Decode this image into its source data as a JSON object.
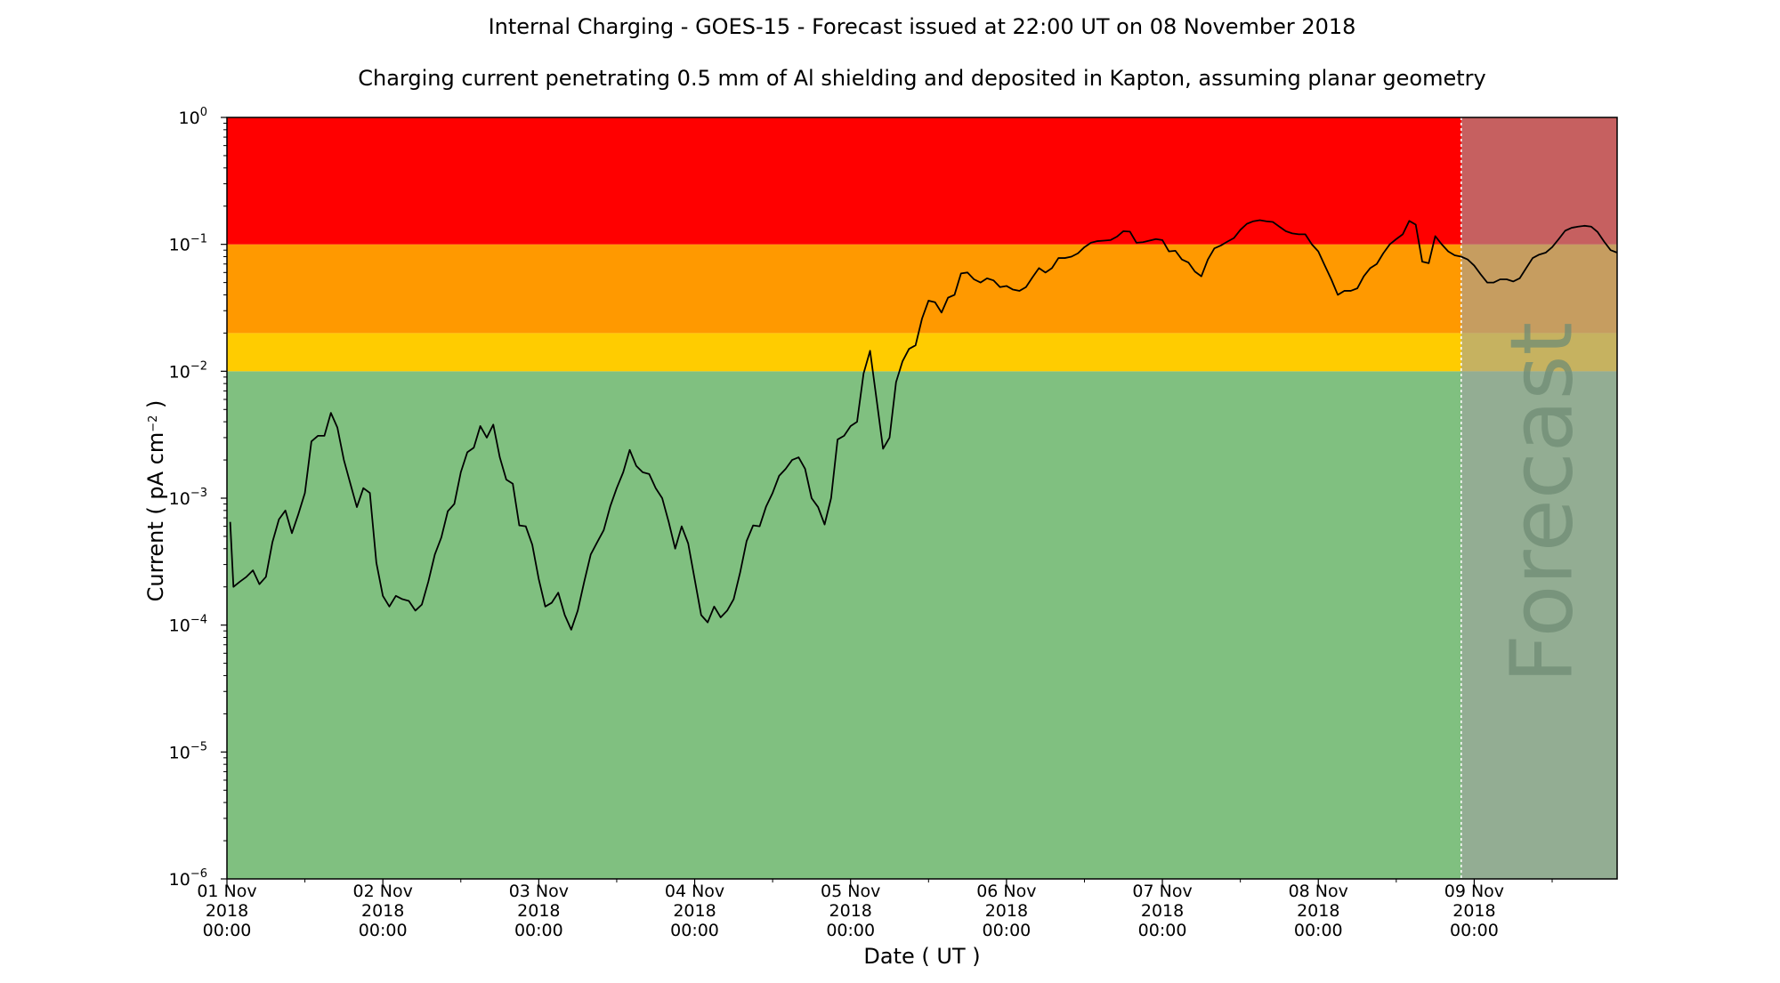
{
  "chart_data": {
    "type": "line",
    "title": "Internal Charging - GOES-15 - Forecast issued at 22:00 UT on 08 November 2018",
    "subtitle": "Charging current penetrating 0.5 mm of Al shielding and deposited in Kapton, assuming planar geometry",
    "xlabel": "Date ( UT )",
    "ylabel_prefix": "Current ( pA cm",
    "ylabel_exp": "−2",
    "ylabel_suffix": " )",
    "yscale": "log",
    "ylim": [
      1e-06,
      1
    ],
    "xlim": [
      "2018-11-01T00:00",
      "2018-11-09T22:00"
    ],
    "grid": false,
    "y_ticks": [
      {
        "value": 1e-06,
        "base": "10",
        "exp": "−6"
      },
      {
        "value": 1e-05,
        "base": "10",
        "exp": "−5"
      },
      {
        "value": 0.0001,
        "base": "10",
        "exp": "−4"
      },
      {
        "value": 0.001,
        "base": "10",
        "exp": "−3"
      },
      {
        "value": 0.01,
        "base": "10",
        "exp": "−2"
      },
      {
        "value": 0.1,
        "base": "10",
        "exp": "−1"
      },
      {
        "value": 1,
        "base": "10",
        "exp": "0"
      }
    ],
    "x_ticks": [
      {
        "value": "2018-11-01T00:00",
        "lines": [
          "01 Nov",
          "2018",
          "00:00"
        ]
      },
      {
        "value": "2018-11-02T00:00",
        "lines": [
          "02 Nov",
          "2018",
          "00:00"
        ]
      },
      {
        "value": "2018-11-03T00:00",
        "lines": [
          "03 Nov",
          "2018",
          "00:00"
        ]
      },
      {
        "value": "2018-11-04T00:00",
        "lines": [
          "04 Nov",
          "2018",
          "00:00"
        ]
      },
      {
        "value": "2018-11-05T00:00",
        "lines": [
          "05 Nov",
          "2018",
          "00:00"
        ]
      },
      {
        "value": "2018-11-06T00:00",
        "lines": [
          "06 Nov",
          "2018",
          "00:00"
        ]
      },
      {
        "value": "2018-11-07T00:00",
        "lines": [
          "07 Nov",
          "2018",
          "00:00"
        ]
      },
      {
        "value": "2018-11-08T00:00",
        "lines": [
          "08 Nov",
          "2018",
          "00:00"
        ]
      },
      {
        "value": "2018-11-09T00:00",
        "lines": [
          "09 Nov",
          "2018",
          "00:00"
        ]
      }
    ],
    "bands": [
      {
        "from": 1e-06,
        "to": 0.01,
        "color": "#80c080"
      },
      {
        "from": 0.01,
        "to": 0.02,
        "color": "#ffcc00"
      },
      {
        "from": 0.02,
        "to": 0.1,
        "color": "#ff9900"
      },
      {
        "from": 0.1,
        "to": 1,
        "color": "#ff0000"
      }
    ],
    "forecast": {
      "start": "2018-11-08T22:00",
      "label": "Forecast",
      "shade_color": "#a0a0a0",
      "shade_opacity": 0.6
    },
    "series": [
      {
        "color": "#000000",
        "points": [
          [
            "2018-11-01T00:30",
            0.00065
          ],
          [
            "2018-11-01T01:00",
            0.0002
          ],
          [
            "2018-11-01T02:00",
            0.00022
          ],
          [
            "2018-11-01T03:00",
            0.00024
          ],
          [
            "2018-11-01T04:00",
            0.00027
          ],
          [
            "2018-11-01T05:00",
            0.00021
          ],
          [
            "2018-11-01T06:00",
            0.00024
          ],
          [
            "2018-11-01T07:00",
            0.00045
          ],
          [
            "2018-11-01T08:00",
            0.00068
          ],
          [
            "2018-11-01T09:00",
            0.0008
          ],
          [
            "2018-11-01T10:00",
            0.00053
          ],
          [
            "2018-11-01T11:00",
            0.00075
          ],
          [
            "2018-11-01T12:00",
            0.0011
          ],
          [
            "2018-11-01T13:00",
            0.0028
          ],
          [
            "2018-11-01T14:00",
            0.0031
          ],
          [
            "2018-11-01T15:00",
            0.0031
          ],
          [
            "2018-11-01T16:00",
            0.0047
          ],
          [
            "2018-11-01T17:00",
            0.0036
          ],
          [
            "2018-11-01T18:00",
            0.002
          ],
          [
            "2018-11-01T19:00",
            0.0013
          ],
          [
            "2018-11-01T20:00",
            0.00085
          ],
          [
            "2018-11-01T21:00",
            0.0012
          ],
          [
            "2018-11-01T22:00",
            0.0011
          ],
          [
            "2018-11-01T23:00",
            0.00031
          ],
          [
            "2018-11-02T00:00",
            0.00017
          ],
          [
            "2018-11-02T01:00",
            0.00014
          ],
          [
            "2018-11-02T02:00",
            0.00017
          ],
          [
            "2018-11-02T03:00",
            0.00016
          ],
          [
            "2018-11-02T04:00",
            0.000155
          ],
          [
            "2018-11-02T05:00",
            0.00013
          ],
          [
            "2018-11-02T06:00",
            0.000145
          ],
          [
            "2018-11-02T07:00",
            0.00022
          ],
          [
            "2018-11-02T08:00",
            0.00036
          ],
          [
            "2018-11-02T09:00",
            0.00049
          ],
          [
            "2018-11-02T10:00",
            0.00079
          ],
          [
            "2018-11-02T11:00",
            0.0009
          ],
          [
            "2018-11-02T12:00",
            0.0016
          ],
          [
            "2018-11-02T13:00",
            0.0023
          ],
          [
            "2018-11-02T14:00",
            0.0025
          ],
          [
            "2018-11-02T15:00",
            0.0037
          ],
          [
            "2018-11-02T16:00",
            0.003
          ],
          [
            "2018-11-02T17:00",
            0.0038
          ],
          [
            "2018-11-02T18:00",
            0.0021
          ],
          [
            "2018-11-02T19:00",
            0.0014
          ],
          [
            "2018-11-02T20:00",
            0.0013
          ],
          [
            "2018-11-02T21:00",
            0.00061
          ],
          [
            "2018-11-02T22:00",
            0.0006
          ],
          [
            "2018-11-02T23:00",
            0.00043
          ],
          [
            "2018-11-03T00:00",
            0.00023
          ],
          [
            "2018-11-03T01:00",
            0.00014
          ],
          [
            "2018-11-03T02:00",
            0.00015
          ],
          [
            "2018-11-03T03:00",
            0.00018
          ],
          [
            "2018-11-03T04:00",
            0.00012
          ],
          [
            "2018-11-03T05:00",
            9.2e-05
          ],
          [
            "2018-11-03T06:00",
            0.00013
          ],
          [
            "2018-11-03T07:00",
            0.00022
          ],
          [
            "2018-11-03T08:00",
            0.00036
          ],
          [
            "2018-11-03T09:00",
            0.00045
          ],
          [
            "2018-11-03T10:00",
            0.00056
          ],
          [
            "2018-11-03T11:00",
            0.00086
          ],
          [
            "2018-11-03T12:00",
            0.0012
          ],
          [
            "2018-11-03T13:00",
            0.0016
          ],
          [
            "2018-11-03T14:00",
            0.0024
          ],
          [
            "2018-11-03T15:00",
            0.0018
          ],
          [
            "2018-11-03T16:00",
            0.0016
          ],
          [
            "2018-11-03T17:00",
            0.00155
          ],
          [
            "2018-11-03T18:00",
            0.0012
          ],
          [
            "2018-11-03T19:00",
            0.001
          ],
          [
            "2018-11-03T20:00",
            0.00065
          ],
          [
            "2018-11-03T21:00",
            0.0004
          ],
          [
            "2018-11-03T22:00",
            0.0006
          ],
          [
            "2018-11-03T23:00",
            0.00044
          ],
          [
            "2018-11-04T00:00",
            0.00023
          ],
          [
            "2018-11-04T01:00",
            0.00012
          ],
          [
            "2018-11-04T02:00",
            0.000105
          ],
          [
            "2018-11-04T03:00",
            0.00014
          ],
          [
            "2018-11-04T04:00",
            0.000115
          ],
          [
            "2018-11-04T05:00",
            0.00013
          ],
          [
            "2018-11-04T06:00",
            0.00016
          ],
          [
            "2018-11-04T07:00",
            0.00026
          ],
          [
            "2018-11-04T08:00",
            0.00046
          ],
          [
            "2018-11-04T09:00",
            0.00061
          ],
          [
            "2018-11-04T10:00",
            0.0006
          ],
          [
            "2018-11-04T11:00",
            0.00086
          ],
          [
            "2018-11-04T12:00",
            0.0011
          ],
          [
            "2018-11-04T13:00",
            0.0015
          ],
          [
            "2018-11-04T14:00",
            0.0017
          ],
          [
            "2018-11-04T15:00",
            0.002
          ],
          [
            "2018-11-04T16:00",
            0.0021
          ],
          [
            "2018-11-04T17:00",
            0.0017
          ],
          [
            "2018-11-04T18:00",
            0.001
          ],
          [
            "2018-11-04T19:00",
            0.00085
          ],
          [
            "2018-11-04T20:00",
            0.00062
          ],
          [
            "2018-11-04T21:00",
            0.001
          ],
          [
            "2018-11-04T22:00",
            0.0029
          ],
          [
            "2018-11-04T23:00",
            0.0031
          ],
          [
            "2018-11-05T00:00",
            0.0037
          ],
          [
            "2018-11-05T01:00",
            0.004
          ],
          [
            "2018-11-05T02:00",
            0.0096
          ],
          [
            "2018-11-05T03:00",
            0.0145
          ],
          [
            "2018-11-05T04:00",
            0.006
          ],
          [
            "2018-11-05T05:00",
            0.00245
          ],
          [
            "2018-11-05T06:00",
            0.003
          ],
          [
            "2018-11-05T07:00",
            0.0082
          ],
          [
            "2018-11-05T08:00",
            0.012
          ],
          [
            "2018-11-05T09:00",
            0.015
          ],
          [
            "2018-11-05T10:00",
            0.016
          ],
          [
            "2018-11-05T11:00",
            0.026
          ],
          [
            "2018-11-05T12:00",
            0.036
          ],
          [
            "2018-11-05T13:00",
            0.035
          ],
          [
            "2018-11-05T14:00",
            0.029
          ],
          [
            "2018-11-05T15:00",
            0.038
          ],
          [
            "2018-11-05T16:00",
            0.04
          ],
          [
            "2018-11-05T17:00",
            0.059
          ],
          [
            "2018-11-05T18:00",
            0.06
          ],
          [
            "2018-11-05T19:00",
            0.053
          ],
          [
            "2018-11-05T20:00",
            0.05
          ],
          [
            "2018-11-05T21:00",
            0.054
          ],
          [
            "2018-11-05T22:00",
            0.052
          ],
          [
            "2018-11-05T23:00",
            0.046
          ],
          [
            "2018-11-06T00:00",
            0.047
          ],
          [
            "2018-11-06T01:00",
            0.044
          ],
          [
            "2018-11-06T02:00",
            0.043
          ],
          [
            "2018-11-06T03:00",
            0.046
          ],
          [
            "2018-11-06T04:00",
            0.055
          ],
          [
            "2018-11-06T05:00",
            0.065
          ],
          [
            "2018-11-06T06:00",
            0.06
          ],
          [
            "2018-11-06T07:00",
            0.065
          ],
          [
            "2018-11-06T08:00",
            0.078
          ],
          [
            "2018-11-06T09:00",
            0.078
          ],
          [
            "2018-11-06T10:00",
            0.08
          ],
          [
            "2018-11-06T11:00",
            0.085
          ],
          [
            "2018-11-06T12:00",
            0.095
          ],
          [
            "2018-11-06T13:00",
            0.103
          ],
          [
            "2018-11-06T14:00",
            0.106
          ],
          [
            "2018-11-06T15:00",
            0.107
          ],
          [
            "2018-11-06T16:00",
            0.108
          ],
          [
            "2018-11-06T17:00",
            0.115
          ],
          [
            "2018-11-06T18:00",
            0.127
          ],
          [
            "2018-11-06T19:00",
            0.126
          ],
          [
            "2018-11-06T20:00",
            0.103
          ],
          [
            "2018-11-06T21:00",
            0.104
          ],
          [
            "2018-11-06T22:00",
            0.107
          ],
          [
            "2018-11-06T23:00",
            0.11
          ],
          [
            "2018-11-07T00:00",
            0.108
          ],
          [
            "2018-11-07T01:00",
            0.088
          ],
          [
            "2018-11-07T02:00",
            0.089
          ],
          [
            "2018-11-07T03:00",
            0.076
          ],
          [
            "2018-11-07T04:00",
            0.072
          ],
          [
            "2018-11-07T05:00",
            0.061
          ],
          [
            "2018-11-07T06:00",
            0.056
          ],
          [
            "2018-11-07T07:00",
            0.076
          ],
          [
            "2018-11-07T08:00",
            0.093
          ],
          [
            "2018-11-07T09:00",
            0.098
          ],
          [
            "2018-11-07T10:00",
            0.105
          ],
          [
            "2018-11-07T11:00",
            0.112
          ],
          [
            "2018-11-07T12:00",
            0.13
          ],
          [
            "2018-11-07T13:00",
            0.145
          ],
          [
            "2018-11-07T14:00",
            0.152
          ],
          [
            "2018-11-07T15:00",
            0.155
          ],
          [
            "2018-11-07T16:00",
            0.152
          ],
          [
            "2018-11-07T17:00",
            0.15
          ],
          [
            "2018-11-07T18:00",
            0.138
          ],
          [
            "2018-11-07T19:00",
            0.127
          ],
          [
            "2018-11-07T20:00",
            0.122
          ],
          [
            "2018-11-07T21:00",
            0.12
          ],
          [
            "2018-11-07T22:00",
            0.12
          ],
          [
            "2018-11-07T23:00",
            0.1
          ],
          [
            "2018-11-08T00:00",
            0.088
          ],
          [
            "2018-11-08T01:00",
            0.068
          ],
          [
            "2018-11-08T02:00",
            0.053
          ],
          [
            "2018-11-08T03:00",
            0.04
          ],
          [
            "2018-11-08T04:00",
            0.043
          ],
          [
            "2018-11-08T05:00",
            0.043
          ],
          [
            "2018-11-08T06:00",
            0.045
          ],
          [
            "2018-11-08T07:00",
            0.056
          ],
          [
            "2018-11-08T08:00",
            0.065
          ],
          [
            "2018-11-08T09:00",
            0.07
          ],
          [
            "2018-11-08T10:00",
            0.085
          ],
          [
            "2018-11-08T11:00",
            0.1
          ],
          [
            "2018-11-08T12:00",
            0.11
          ],
          [
            "2018-11-08T13:00",
            0.12
          ],
          [
            "2018-11-08T14:00",
            0.153
          ],
          [
            "2018-11-08T15:00",
            0.143
          ],
          [
            "2018-11-08T16:00",
            0.073
          ],
          [
            "2018-11-08T17:00",
            0.071
          ],
          [
            "2018-11-08T18:00",
            0.116
          ],
          [
            "2018-11-08T19:00",
            0.1
          ],
          [
            "2018-11-08T20:00",
            0.088
          ],
          [
            "2018-11-08T21:00",
            0.082
          ],
          [
            "2018-11-08T22:00",
            0.08
          ],
          [
            "2018-11-08T23:00",
            0.076
          ],
          [
            "2018-11-09T00:00",
            0.068
          ],
          [
            "2018-11-09T01:00",
            0.058
          ],
          [
            "2018-11-09T02:00",
            0.05
          ],
          [
            "2018-11-09T03:00",
            0.05
          ],
          [
            "2018-11-09T04:00",
            0.053
          ],
          [
            "2018-11-09T05:00",
            0.053
          ],
          [
            "2018-11-09T06:00",
            0.051
          ],
          [
            "2018-11-09T07:00",
            0.054
          ],
          [
            "2018-11-09T08:00",
            0.065
          ],
          [
            "2018-11-09T09:00",
            0.078
          ],
          [
            "2018-11-09T10:00",
            0.083
          ],
          [
            "2018-11-09T11:00",
            0.086
          ],
          [
            "2018-11-09T12:00",
            0.095
          ],
          [
            "2018-11-09T13:00",
            0.11
          ],
          [
            "2018-11-09T14:00",
            0.128
          ],
          [
            "2018-11-09T15:00",
            0.135
          ],
          [
            "2018-11-09T16:00",
            0.138
          ],
          [
            "2018-11-09T17:00",
            0.14
          ],
          [
            "2018-11-09T18:00",
            0.138
          ],
          [
            "2018-11-09T19:00",
            0.125
          ],
          [
            "2018-11-09T20:00",
            0.105
          ],
          [
            "2018-11-09T21:00",
            0.09
          ],
          [
            "2018-11-09T22:00",
            0.086
          ]
        ]
      }
    ]
  }
}
